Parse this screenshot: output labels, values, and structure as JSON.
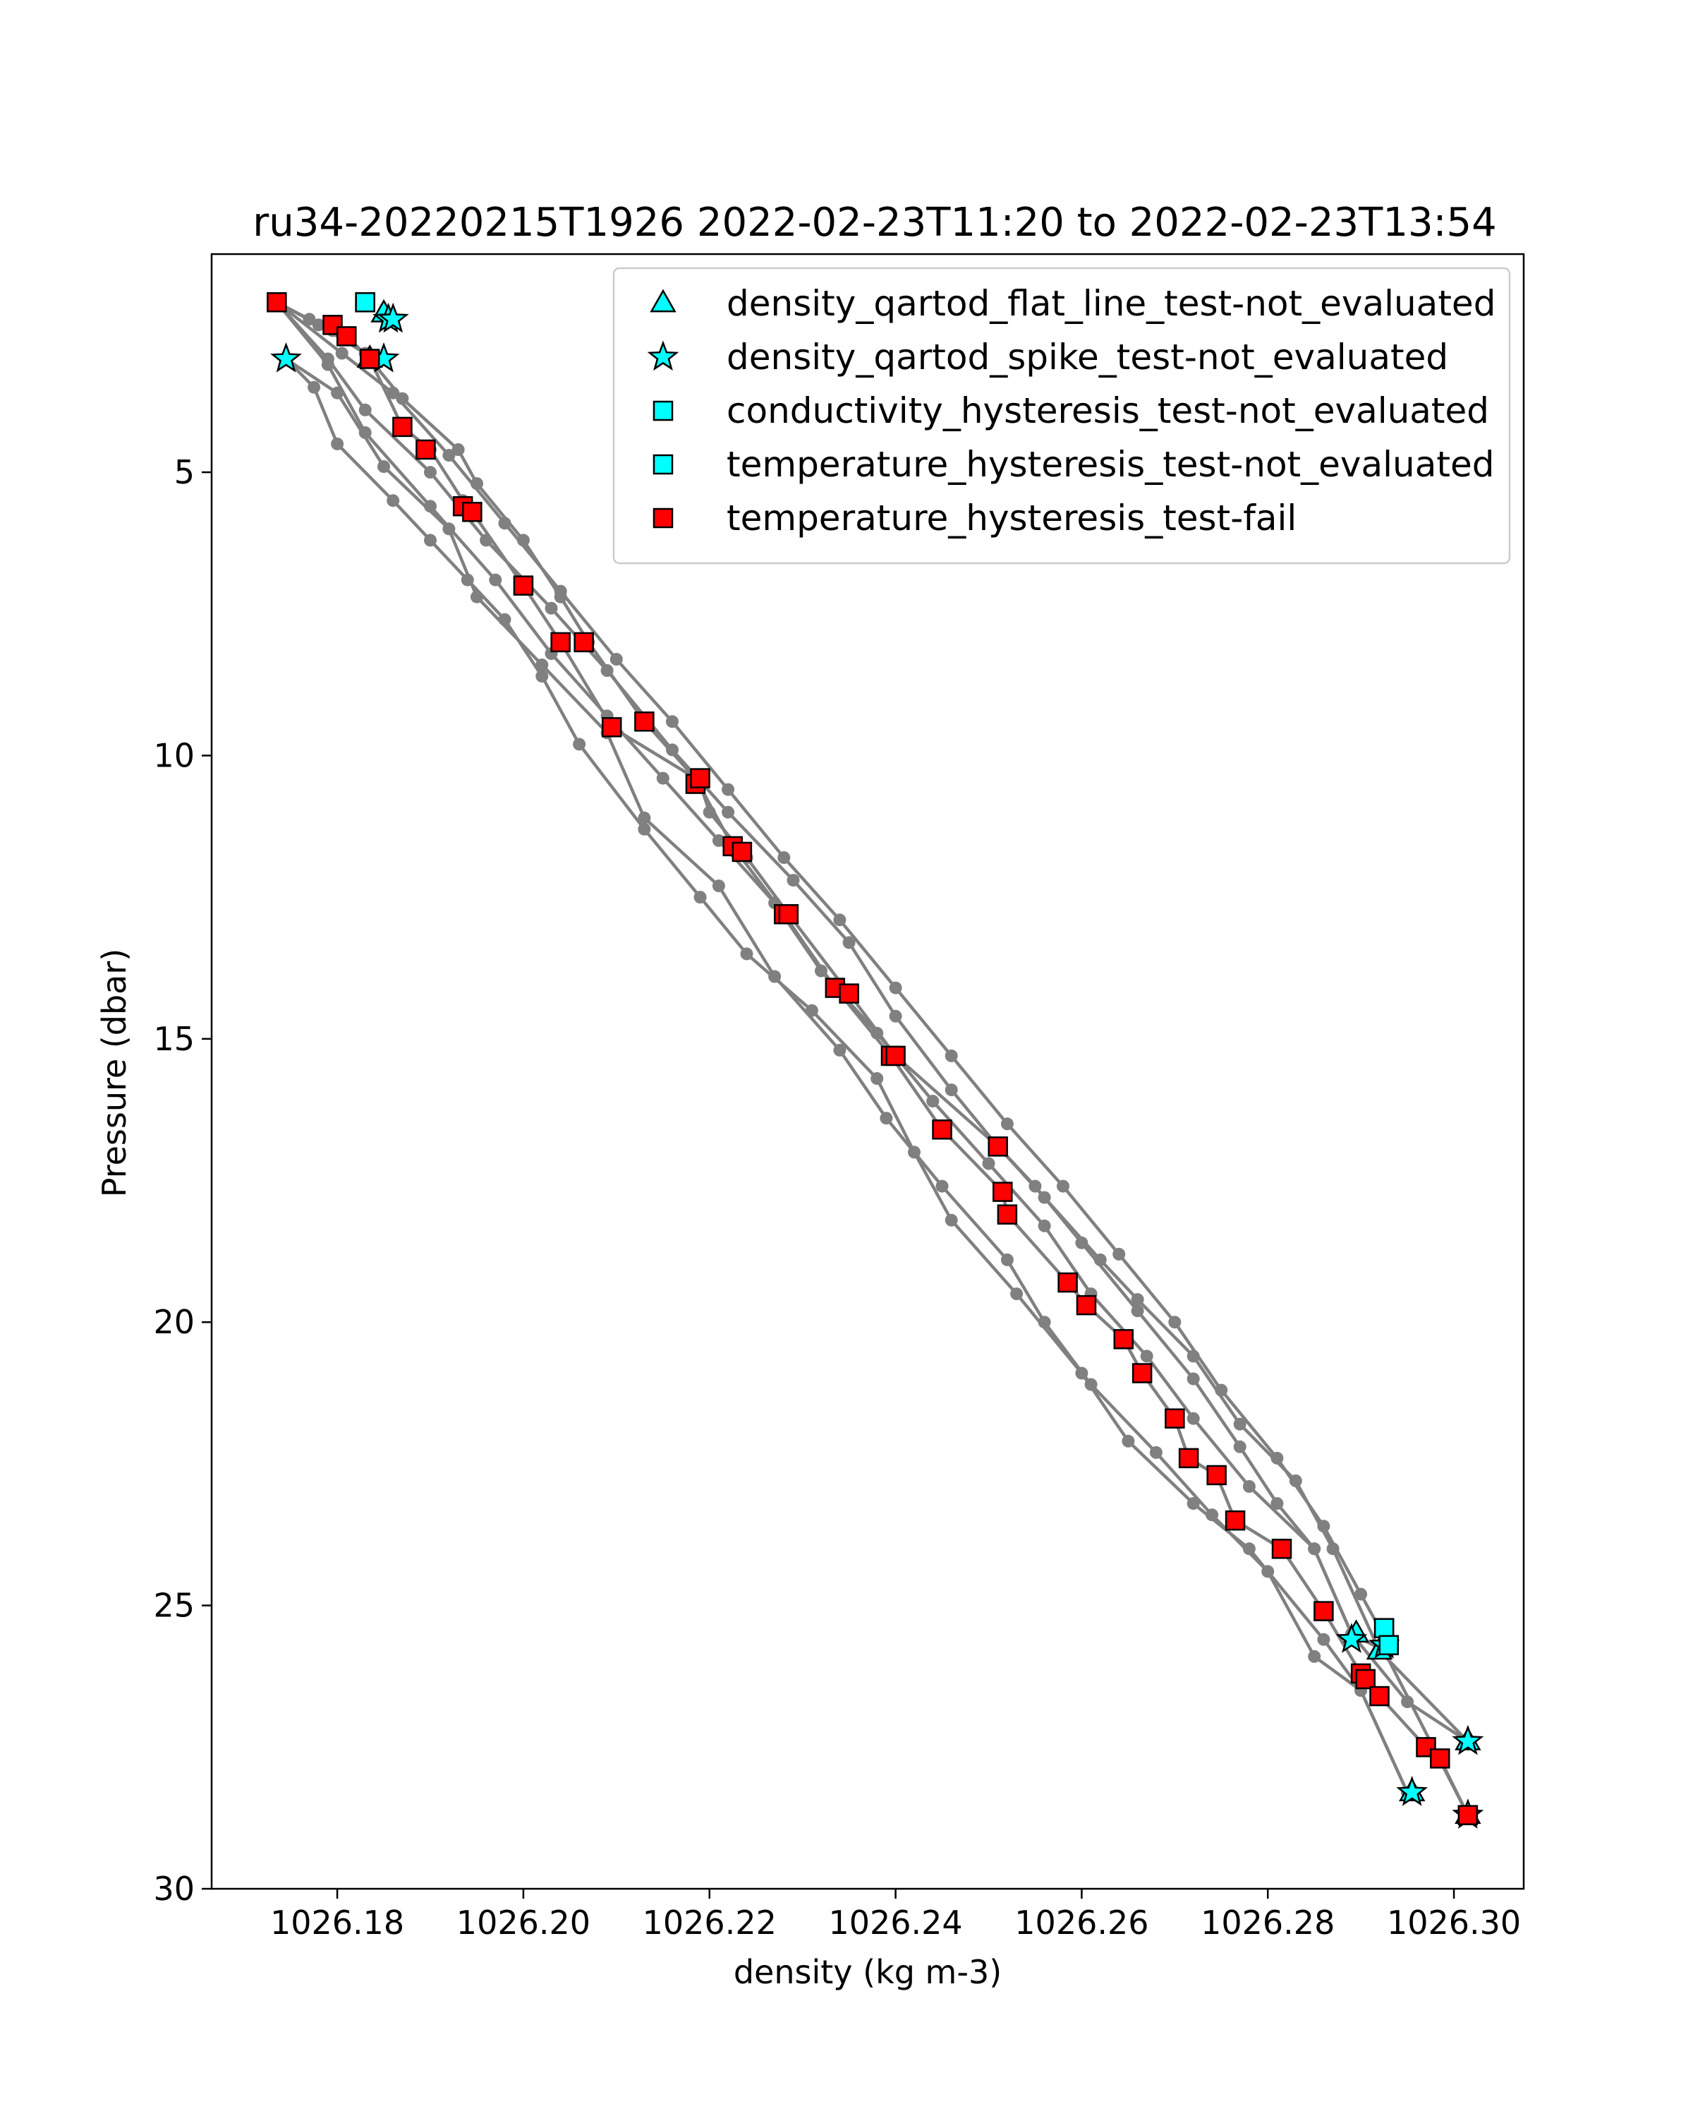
{
  "colors": {
    "line": "#808080",
    "cyan": "#00ffff",
    "red": "#ff0000",
    "marker_edge": "#000000"
  },
  "chart_data": {
    "type": "scatter",
    "title": "ru34-20220215T1926 2022-02-23T11:20 to 2022-02-23T13:54",
    "xlabel": "density (kg m-3)",
    "ylabel": "Pressure (dbar)",
    "xlim": [
      1026.1665,
      1026.3075
    ],
    "ylim": [
      30.0,
      1.15
    ],
    "y_inverted": true,
    "xticks": [
      1026.18,
      1026.2,
      1026.22,
      1026.24,
      1026.26,
      1026.28,
      1026.3
    ],
    "xtick_labels": [
      "1026.18",
      "1026.20",
      "1026.22",
      "1026.24",
      "1026.26",
      "1026.28",
      "1026.30"
    ],
    "yticks": [
      5,
      10,
      15,
      20,
      25,
      30
    ],
    "ytick_labels": [
      "5",
      "10",
      "15",
      "20",
      "25",
      "30"
    ],
    "grid": false,
    "legend_position": "top-right",
    "legend": [
      {
        "label": "density_qartod_flat_line_test-not_evaluated",
        "marker": "triangle",
        "color": "#00ffff"
      },
      {
        "label": "density_qartod_spike_test-not_evaluated",
        "marker": "star",
        "color": "#00ffff"
      },
      {
        "label": "conductivity_hysteresis_test-not_evaluated",
        "marker": "square",
        "color": "#00ffff"
      },
      {
        "label": "temperature_hysteresis_test-not_evaluated",
        "marker": "square",
        "color": "#00ffff"
      },
      {
        "label": "temperature_hysteresis_test-fail",
        "marker": "square",
        "color": "#ff0000"
      }
    ],
    "profiles": [
      [
        [
          1026.1735,
          2.0
        ],
        [
          1026.177,
          2.3
        ],
        [
          1026.1795,
          2.5
        ],
        [
          1026.181,
          2.6
        ],
        [
          1026.1835,
          3.0
        ],
        [
          1026.187,
          4.2
        ],
        [
          1026.19,
          4.6
        ],
        [
          1026.1935,
          5.5
        ],
        [
          1026.1945,
          5.7
        ],
        [
          1026.2,
          7.0
        ],
        [
          1026.204,
          8.0
        ],
        [
          1026.2095,
          9.5
        ],
        [
          1026.2185,
          10.4
        ],
        [
          1026.2225,
          11.6
        ],
        [
          1026.228,
          12.8
        ],
        [
          1026.2335,
          14.1
        ],
        [
          1026.2395,
          15.3
        ],
        [
          1026.245,
          16.6
        ],
        [
          1026.2515,
          17.7
        ],
        [
          1026.252,
          18.1
        ],
        [
          1026.2585,
          19.3
        ],
        [
          1026.2605,
          19.7
        ],
        [
          1026.2645,
          20.3
        ],
        [
          1026.2665,
          20.9
        ],
        [
          1026.27,
          21.7
        ],
        [
          1026.2715,
          22.4
        ],
        [
          1026.2745,
          22.7
        ],
        [
          1026.2765,
          23.5
        ],
        [
          1026.2815,
          24.0
        ],
        [
          1026.286,
          25.1
        ],
        [
          1026.29,
          26.2
        ],
        [
          1026.2905,
          26.3
        ],
        [
          1026.292,
          26.6
        ],
        [
          1026.297,
          27.5
        ],
        [
          1026.2985,
          27.7
        ],
        [
          1026.3015,
          28.7
        ]
      ],
      [
        [
          1026.1735,
          2.0
        ],
        [
          1026.178,
          2.4
        ],
        [
          1026.183,
          2.9
        ],
        [
          1026.187,
          3.7
        ],
        [
          1026.193,
          4.6
        ],
        [
          1026.195,
          5.2
        ],
        [
          1026.2,
          6.2
        ],
        [
          1026.204,
          7.2
        ],
        [
          1026.207,
          8.0
        ],
        [
          1026.213,
          9.4
        ],
        [
          1026.219,
          10.5
        ],
        [
          1026.22,
          11.0
        ],
        [
          1026.224,
          11.8
        ],
        [
          1026.2285,
          12.8
        ],
        [
          1026.235,
          14.2
        ],
        [
          1026.24,
          15.3
        ],
        [
          1026.251,
          16.9
        ],
        [
          1026.255,
          17.6
        ],
        [
          1026.26,
          18.6
        ],
        [
          1026.266,
          19.8
        ],
        [
          1026.272,
          21.0
        ],
        [
          1026.277,
          22.2
        ],
        [
          1026.281,
          23.2
        ],
        [
          1026.285,
          24.0
        ],
        [
          1026.289,
          25.5
        ],
        [
          1026.2925,
          25.8
        ],
        [
          1026.3015,
          28.7
        ]
      ],
      [
        [
          1026.1735,
          2.0
        ],
        [
          1026.179,
          3.0
        ],
        [
          1026.183,
          3.9
        ],
        [
          1026.19,
          5.0
        ],
        [
          1026.196,
          6.2
        ],
        [
          1026.203,
          7.4
        ],
        [
          1026.209,
          8.5
        ],
        [
          1026.216,
          9.9
        ],
        [
          1026.222,
          11.0
        ],
        [
          1026.229,
          12.2
        ],
        [
          1026.235,
          13.3
        ],
        [
          1026.24,
          14.6
        ],
        [
          1026.246,
          15.9
        ],
        [
          1026.251,
          16.9
        ],
        [
          1026.256,
          17.8
        ],
        [
          1026.262,
          18.9
        ],
        [
          1026.266,
          19.6
        ],
        [
          1026.272,
          20.6
        ],
        [
          1026.277,
          21.8
        ],
        [
          1026.283,
          22.8
        ],
        [
          1026.287,
          24.0
        ],
        [
          1026.292,
          25.8
        ],
        [
          1026.3015,
          27.4
        ]
      ],
      [
        [
          1026.1735,
          2.0
        ],
        [
          1026.179,
          3.1
        ],
        [
          1026.183,
          4.3
        ],
        [
          1026.19,
          5.6
        ],
        [
          1026.197,
          6.9
        ],
        [
          1026.203,
          8.2
        ],
        [
          1026.209,
          9.3
        ],
        [
          1026.215,
          10.4
        ],
        [
          1026.221,
          11.5
        ],
        [
          1026.227,
          12.6
        ],
        [
          1026.232,
          13.8
        ],
        [
          1026.238,
          14.9
        ],
        [
          1026.244,
          16.1
        ],
        [
          1026.25,
          17.2
        ],
        [
          1026.256,
          18.3
        ],
        [
          1026.261,
          19.5
        ],
        [
          1026.267,
          20.6
        ],
        [
          1026.272,
          21.7
        ],
        [
          1026.278,
          22.9
        ],
        [
          1026.285,
          24.0
        ],
        [
          1026.289,
          25.5
        ],
        [
          1026.295,
          26.7
        ],
        [
          1026.3015,
          27.4
        ]
      ],
      [
        [
          1026.1735,
          2.0
        ],
        [
          1026.1805,
          2.9
        ],
        [
          1026.186,
          3.6
        ],
        [
          1026.192,
          4.7
        ],
        [
          1026.198,
          5.9
        ],
        [
          1026.204,
          7.1
        ],
        [
          1026.21,
          8.3
        ],
        [
          1026.216,
          9.4
        ],
        [
          1026.222,
          10.6
        ],
        [
          1026.228,
          11.8
        ],
        [
          1026.234,
          12.9
        ],
        [
          1026.24,
          14.1
        ],
        [
          1026.246,
          15.3
        ],
        [
          1026.252,
          16.5
        ],
        [
          1026.258,
          17.6
        ],
        [
          1026.264,
          18.8
        ],
        [
          1026.27,
          20.0
        ],
        [
          1026.275,
          21.2
        ],
        [
          1026.281,
          22.4
        ],
        [
          1026.286,
          23.6
        ],
        [
          1026.29,
          24.8
        ],
        [
          1026.293,
          25.7
        ]
      ],
      [
        [
          1026.1745,
          3.0
        ],
        [
          1026.1775,
          3.5
        ],
        [
          1026.18,
          4.5
        ],
        [
          1026.186,
          5.5
        ],
        [
          1026.19,
          6.2
        ],
        [
          1026.194,
          6.9
        ],
        [
          1026.198,
          7.6
        ],
        [
          1026.202,
          8.6
        ],
        [
          1026.206,
          9.8
        ],
        [
          1026.213,
          11.3
        ],
        [
          1026.219,
          12.5
        ],
        [
          1026.224,
          13.5
        ],
        [
          1026.231,
          14.5
        ],
        [
          1026.238,
          15.7
        ],
        [
          1026.242,
          17.0
        ],
        [
          1026.246,
          18.2
        ],
        [
          1026.253,
          19.5
        ],
        [
          1026.26,
          20.9
        ],
        [
          1026.265,
          22.1
        ],
        [
          1026.272,
          23.2
        ],
        [
          1026.278,
          24.0
        ],
        [
          1026.286,
          25.6
        ],
        [
          1026.29,
          26.5
        ],
        [
          1026.295,
          28.3
        ]
      ],
      [
        [
          1026.1745,
          3.0
        ],
        [
          1026.18,
          3.6
        ],
        [
          1026.185,
          4.9
        ],
        [
          1026.192,
          6.0
        ],
        [
          1026.195,
          7.2
        ],
        [
          1026.202,
          8.4
        ],
        [
          1026.209,
          9.6
        ],
        [
          1026.213,
          11.1
        ],
        [
          1026.221,
          12.3
        ],
        [
          1026.227,
          13.9
        ],
        [
          1026.234,
          15.2
        ],
        [
          1026.239,
          16.4
        ],
        [
          1026.245,
          17.6
        ],
        [
          1026.252,
          18.9
        ],
        [
          1026.256,
          20.0
        ],
        [
          1026.261,
          21.1
        ],
        [
          1026.268,
          22.3
        ],
        [
          1026.274,
          23.4
        ],
        [
          1026.28,
          24.4
        ],
        [
          1026.285,
          25.9
        ],
        [
          1026.29,
          26.5
        ],
        [
          1026.295,
          28.3
        ]
      ]
    ],
    "points": {
      "density_qartod_flat_line_test-not_evaluated": [
        [
          1026.185,
          2.2
        ],
        [
          1026.1835,
          3.0
        ],
        [
          1026.2895,
          25.5
        ],
        [
          1026.292,
          25.8
        ],
        [
          1026.3015,
          27.4
        ],
        [
          1026.2955,
          28.3
        ],
        [
          1026.3015,
          28.7
        ]
      ],
      "density_qartod_spike_test-not_evaluated": [
        [
          1026.1855,
          2.3
        ],
        [
          1026.186,
          2.3
        ],
        [
          1026.1745,
          3.0
        ],
        [
          1026.185,
          3.0
        ],
        [
          1026.289,
          25.6
        ],
        [
          1026.2925,
          25.7
        ],
        [
          1026.3015,
          27.4
        ],
        [
          1026.2955,
          28.3
        ],
        [
          1026.3015,
          28.7
        ]
      ],
      "conductivity_hysteresis_test-not_evaluated": [
        [
          1026.183,
          2.0
        ],
        [
          1026.2925,
          25.4
        ],
        [
          1026.293,
          25.7
        ]
      ],
      "temperature_hysteresis_test-not_evaluated": [
        [
          1026.183,
          2.0
        ],
        [
          1026.2925,
          25.4
        ],
        [
          1026.293,
          25.7
        ]
      ],
      "temperature_hysteresis_test-fail": [
        [
          1026.1735,
          2.0
        ],
        [
          1026.1795,
          2.4
        ],
        [
          1026.181,
          2.6
        ],
        [
          1026.1835,
          3.0
        ],
        [
          1026.187,
          4.2
        ],
        [
          1026.1895,
          4.6
        ],
        [
          1026.1935,
          5.6
        ],
        [
          1026.1945,
          5.7
        ],
        [
          1026.2,
          7.0
        ],
        [
          1026.204,
          8.0
        ],
        [
          1026.2065,
          8.0
        ],
        [
          1026.2095,
          9.5
        ],
        [
          1026.213,
          9.4
        ],
        [
          1026.2185,
          10.5
        ],
        [
          1026.219,
          10.4
        ],
        [
          1026.2225,
          11.6
        ],
        [
          1026.2235,
          11.7
        ],
        [
          1026.228,
          12.8
        ],
        [
          1026.2285,
          12.8
        ],
        [
          1026.2335,
          14.1
        ],
        [
          1026.235,
          14.2
        ],
        [
          1026.2395,
          15.3
        ],
        [
          1026.24,
          15.3
        ],
        [
          1026.245,
          16.6
        ],
        [
          1026.251,
          16.9
        ],
        [
          1026.2515,
          17.7
        ],
        [
          1026.252,
          18.1
        ],
        [
          1026.2585,
          19.3
        ],
        [
          1026.2605,
          19.7
        ],
        [
          1026.2645,
          20.3
        ],
        [
          1026.2665,
          20.9
        ],
        [
          1026.27,
          21.7
        ],
        [
          1026.2715,
          22.4
        ],
        [
          1026.2745,
          22.7
        ],
        [
          1026.2765,
          23.5
        ],
        [
          1026.2815,
          24.0
        ],
        [
          1026.286,
          25.1
        ],
        [
          1026.29,
          26.2
        ],
        [
          1026.2905,
          26.3
        ],
        [
          1026.292,
          26.6
        ],
        [
          1026.297,
          27.5
        ],
        [
          1026.2985,
          27.7
        ],
        [
          1026.3015,
          28.7
        ]
      ]
    }
  }
}
